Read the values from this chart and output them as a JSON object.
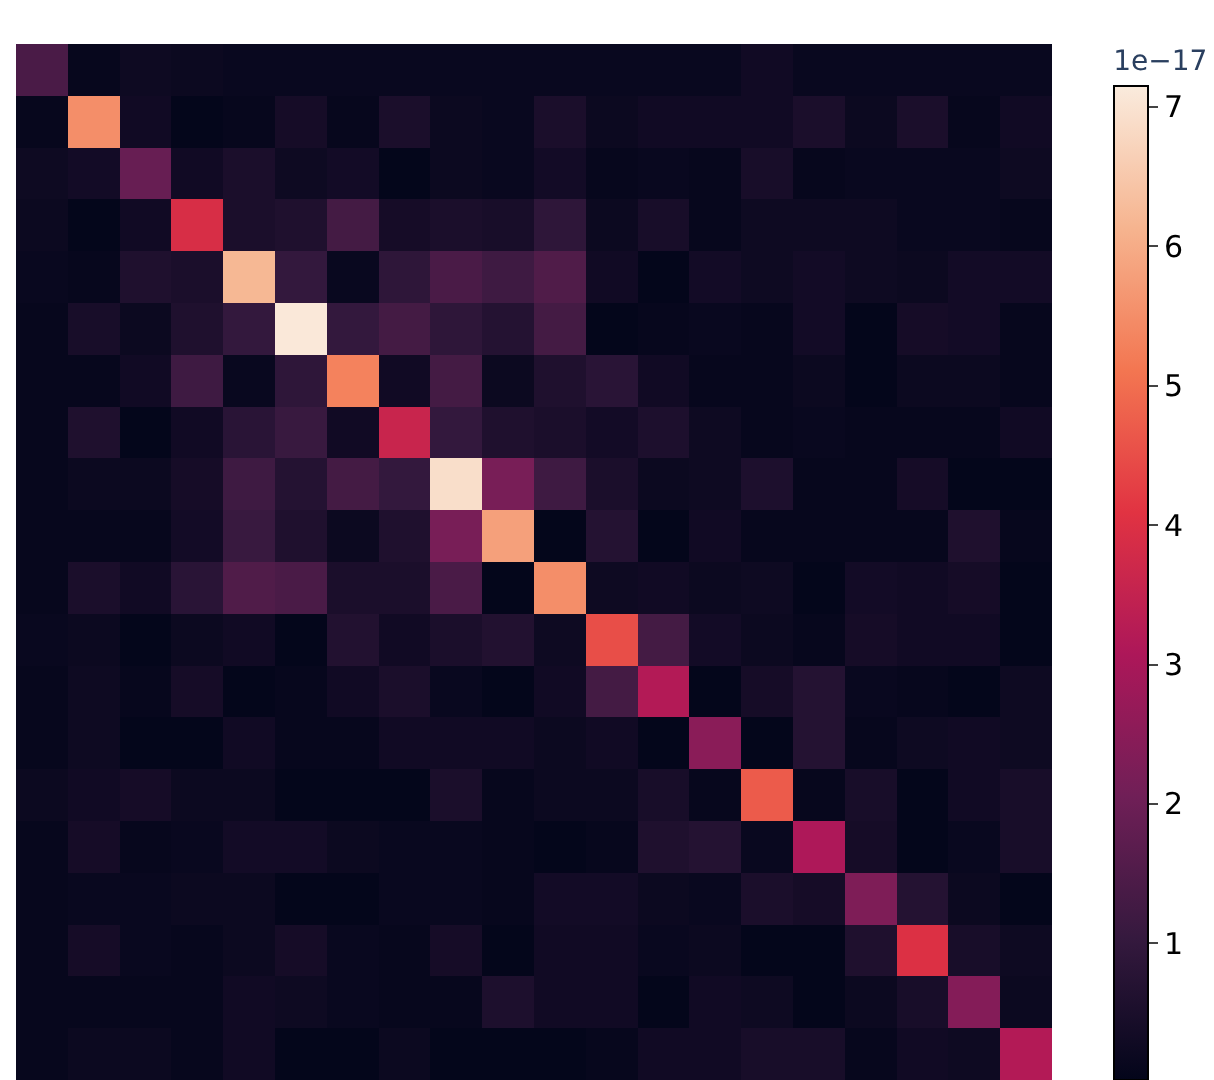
{
  "chart_data": {
    "type": "heatmap",
    "clabel": "1e−17",
    "categories": [
      null,
      null,
      null,
      null,
      null,
      null,
      null,
      null,
      null,
      null,
      null,
      null,
      null,
      null,
      null,
      null,
      null,
      null,
      null,
      null
    ],
    "y_categories": [
      null,
      null,
      null,
      null,
      null,
      null,
      null,
      null,
      null,
      null,
      null,
      null,
      null,
      null,
      null,
      null,
      null,
      null,
      null,
      null
    ],
    "clim": [
      0.02,
      7.15
    ],
    "cticks": [
      1,
      2,
      3,
      4,
      5,
      6,
      7
    ],
    "cells": [
      [
        1.4,
        0.1,
        0.25,
        0.2,
        0.15,
        0.15,
        0.15,
        0.15,
        0.15,
        0.15,
        0.15,
        0.15,
        0.15,
        0.15,
        0.3,
        0.15,
        0.15,
        0.15,
        0.15,
        0.15
      ],
      [
        0.1,
        5.5,
        0.3,
        0.05,
        0.1,
        0.4,
        0.1,
        0.5,
        0.2,
        0.15,
        0.5,
        0.2,
        0.3,
        0.3,
        0.3,
        0.5,
        0.2,
        0.5,
        0.1,
        0.3
      ],
      [
        0.25,
        0.35,
        1.9,
        0.3,
        0.5,
        0.25,
        0.35,
        0.05,
        0.2,
        0.15,
        0.35,
        0.1,
        0.15,
        0.1,
        0.45,
        0.1,
        0.15,
        0.15,
        0.15,
        0.25
      ],
      [
        0.2,
        0.05,
        0.3,
        3.9,
        0.5,
        0.6,
        1.3,
        0.4,
        0.5,
        0.45,
        0.9,
        0.2,
        0.45,
        0.1,
        0.25,
        0.25,
        0.25,
        0.15,
        0.15,
        0.1
      ],
      [
        0.15,
        0.1,
        0.6,
        0.5,
        6.2,
        1.0,
        0.15,
        0.9,
        1.4,
        1.2,
        1.5,
        0.3,
        0.05,
        0.35,
        0.25,
        0.35,
        0.25,
        0.2,
        0.35,
        0.35
      ],
      [
        0.1,
        0.45,
        0.2,
        0.6,
        1.0,
        7.1,
        1.0,
        1.3,
        0.9,
        0.7,
        1.3,
        0.05,
        0.1,
        0.15,
        0.1,
        0.35,
        0.05,
        0.4,
        0.35,
        0.1
      ],
      [
        0.1,
        0.1,
        0.3,
        1.2,
        0.15,
        0.9,
        5.3,
        0.3,
        1.3,
        0.2,
        0.6,
        0.8,
        0.3,
        0.1,
        0.1,
        0.2,
        0.05,
        0.2,
        0.2,
        0.1
      ],
      [
        0.1,
        0.6,
        0.05,
        0.3,
        0.8,
        1.1,
        0.3,
        3.6,
        1.0,
        0.6,
        0.5,
        0.35,
        0.55,
        0.25,
        0.1,
        0.15,
        0.1,
        0.1,
        0.1,
        0.3
      ],
      [
        0.1,
        0.2,
        0.2,
        0.4,
        1.2,
        0.7,
        1.3,
        1.0,
        6.9,
        2.2,
        1.2,
        0.5,
        0.2,
        0.25,
        0.55,
        0.1,
        0.1,
        0.4,
        0.05,
        0.05
      ],
      [
        0.1,
        0.1,
        0.1,
        0.35,
        1.1,
        0.6,
        0.2,
        0.6,
        2.2,
        5.8,
        0.05,
        0.7,
        0.05,
        0.3,
        0.1,
        0.1,
        0.1,
        0.1,
        0.6,
        0.1
      ],
      [
        0.1,
        0.5,
        0.3,
        0.8,
        1.5,
        1.4,
        0.5,
        0.5,
        1.4,
        0.05,
        5.5,
        0.25,
        0.3,
        0.2,
        0.25,
        0.05,
        0.35,
        0.3,
        0.4,
        0.05
      ],
      [
        0.15,
        0.2,
        0.05,
        0.2,
        0.3,
        0.05,
        0.65,
        0.3,
        0.5,
        0.65,
        0.25,
        4.5,
        1.3,
        0.35,
        0.2,
        0.1,
        0.4,
        0.3,
        0.3,
        0.05
      ],
      [
        0.1,
        0.25,
        0.1,
        0.4,
        0.05,
        0.1,
        0.3,
        0.5,
        0.15,
        0.05,
        0.3,
        1.3,
        3.2,
        0.05,
        0.4,
        0.7,
        0.15,
        0.1,
        0.05,
        0.25
      ],
      [
        0.1,
        0.25,
        0.05,
        0.05,
        0.3,
        0.1,
        0.1,
        0.3,
        0.3,
        0.3,
        0.2,
        0.3,
        0.05,
        2.5,
        0.05,
        0.7,
        0.1,
        0.25,
        0.3,
        0.25
      ],
      [
        0.2,
        0.3,
        0.4,
        0.2,
        0.2,
        0.05,
        0.05,
        0.05,
        0.5,
        0.1,
        0.2,
        0.2,
        0.45,
        0.1,
        4.7,
        0.1,
        0.45,
        0.05,
        0.3,
        0.45
      ],
      [
        0.1,
        0.4,
        0.1,
        0.15,
        0.35,
        0.35,
        0.2,
        0.15,
        0.15,
        0.1,
        0.05,
        0.1,
        0.6,
        0.7,
        0.15,
        3.1,
        0.4,
        0.05,
        0.15,
        0.45
      ],
      [
        0.1,
        0.15,
        0.15,
        0.2,
        0.2,
        0.05,
        0.05,
        0.15,
        0.15,
        0.1,
        0.35,
        0.35,
        0.2,
        0.15,
        0.5,
        0.4,
        2.3,
        0.7,
        0.2,
        0.05
      ],
      [
        0.1,
        0.4,
        0.15,
        0.1,
        0.2,
        0.4,
        0.15,
        0.1,
        0.4,
        0.05,
        0.3,
        0.3,
        0.15,
        0.2,
        0.05,
        0.05,
        0.6,
        4.0,
        0.45,
        0.25
      ],
      [
        0.1,
        0.1,
        0.1,
        0.1,
        0.3,
        0.25,
        0.15,
        0.1,
        0.1,
        0.55,
        0.3,
        0.3,
        0.05,
        0.3,
        0.25,
        0.05,
        0.2,
        0.45,
        2.4,
        0.2
      ],
      [
        0.1,
        0.2,
        0.2,
        0.1,
        0.3,
        0.05,
        0.05,
        0.2,
        0.05,
        0.05,
        0.05,
        0.1,
        0.3,
        0.3,
        0.45,
        0.45,
        0.1,
        0.3,
        0.25,
        3.2
      ]
    ]
  }
}
